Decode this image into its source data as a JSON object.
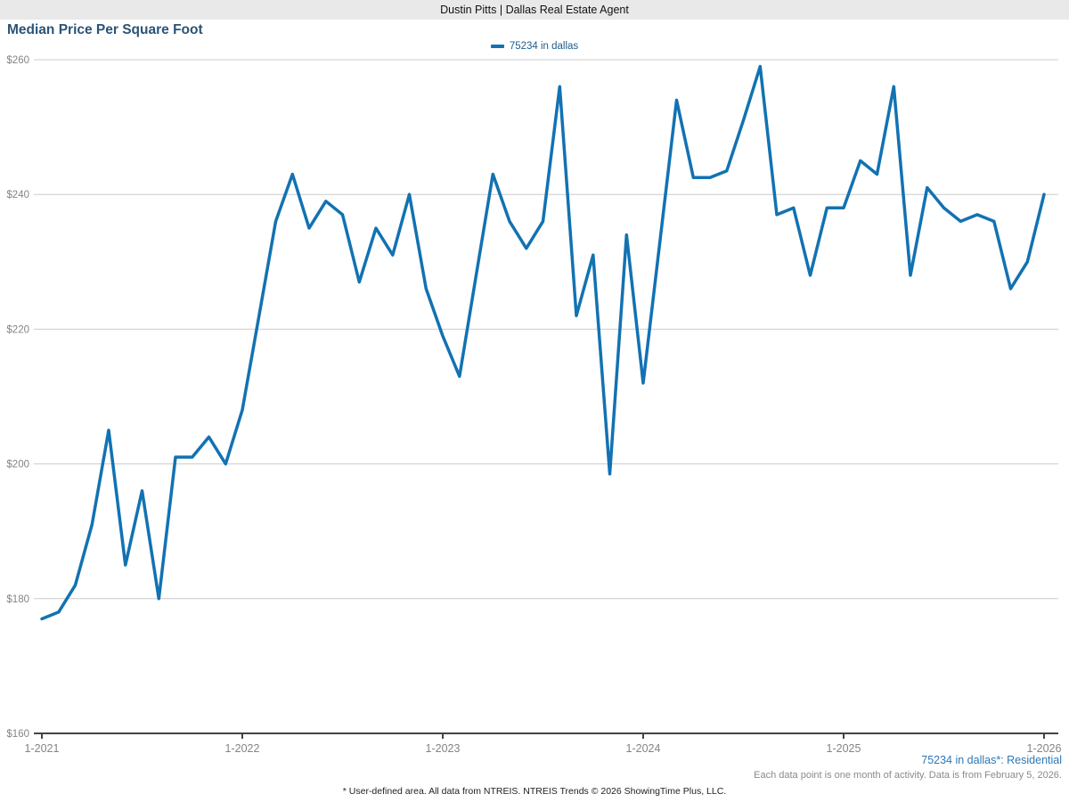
{
  "header": {
    "title": "Dustin Pitts | Dallas Real Estate Agent"
  },
  "chart": {
    "title": "Median Price Per Square Foot",
    "legend_label": "75234 in dallas"
  },
  "chart_data": {
    "type": "line",
    "title": "Median Price Per Square Foot",
    "x_start": "1-2021",
    "x_interval": "month",
    "x_tick_labels": [
      "1-2021",
      "1-2022",
      "1-2023",
      "1-2024",
      "1-2025",
      "1-2026"
    ],
    "months_per_tick": 12,
    "y_ticks": [
      160,
      180,
      200,
      220,
      240,
      260
    ],
    "y_tick_labels": [
      "$160",
      "$180",
      "$200",
      "$220",
      "$240",
      "$260"
    ],
    "ylim": [
      160,
      260
    ],
    "grid": "horizontal",
    "legend_position": "top-center",
    "series": [
      {
        "name": "75234 in dallas",
        "color": "#1272b2",
        "values": [
          177,
          178,
          182,
          191,
          205,
          185,
          196,
          180,
          201,
          201,
          204,
          200,
          208,
          222,
          236,
          243,
          235,
          239,
          237,
          227,
          235,
          231,
          240,
          226,
          219,
          213,
          228,
          243,
          236,
          232,
          236,
          256,
          222,
          231,
          198.5,
          234,
          212,
          233,
          254,
          242.5,
          242.5,
          243.5,
          251,
          259,
          237,
          238,
          228,
          238,
          238,
          245,
          243,
          256,
          228,
          241,
          238,
          236,
          237,
          236,
          226,
          230,
          240
        ]
      }
    ]
  },
  "footer": {
    "series_note": "75234 in dallas*: Residential",
    "activity_note": "Each data point is one month of activity. Data is from February 5, 2026.",
    "disclaimer": "* User-defined area. All data from NTREIS. NTREIS Trends © 2026 ShowingTime Plus, LLC."
  },
  "colors": {
    "line_blue": "#1272b2",
    "title_navy": "#2b5377",
    "legend_text": "#1f5c8b",
    "footer_link_blue": "#2e78b5",
    "gridline_gray": "#cccccc",
    "axis_dark": "#444444",
    "tick_label_gray": "#848484",
    "header_bar_bg": "#e9e9e9"
  }
}
